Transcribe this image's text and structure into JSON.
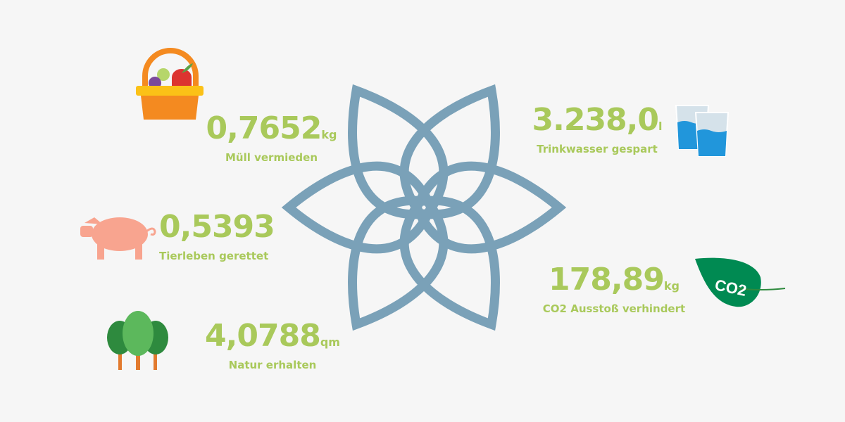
{
  "colors": {
    "text": "#a9c95b",
    "logo": "#7aa1b8",
    "background": "#f6f6f6"
  },
  "stats": [
    {
      "value": "0,7652",
      "unit": "kg",
      "label": "Müll vermieden",
      "icon": "fruit-basket-icon"
    },
    {
      "value": "0,5393",
      "unit": "",
      "label": "Tierleben gerettet",
      "icon": "pig-icon"
    },
    {
      "value": "4,0788",
      "unit": "qm",
      "label": "Natur erhalten",
      "icon": "trees-icon"
    },
    {
      "value": "3.238,0",
      "unit": "l",
      "label": "Trinkwasser gespart",
      "icon": "water-glasses-icon"
    },
    {
      "value": "178,89",
      "unit": "kg",
      "label": "CO2 Ausstoß verhindert",
      "icon": "co2-leaf-icon"
    }
  ],
  "co2_leaf_text": "CO2"
}
